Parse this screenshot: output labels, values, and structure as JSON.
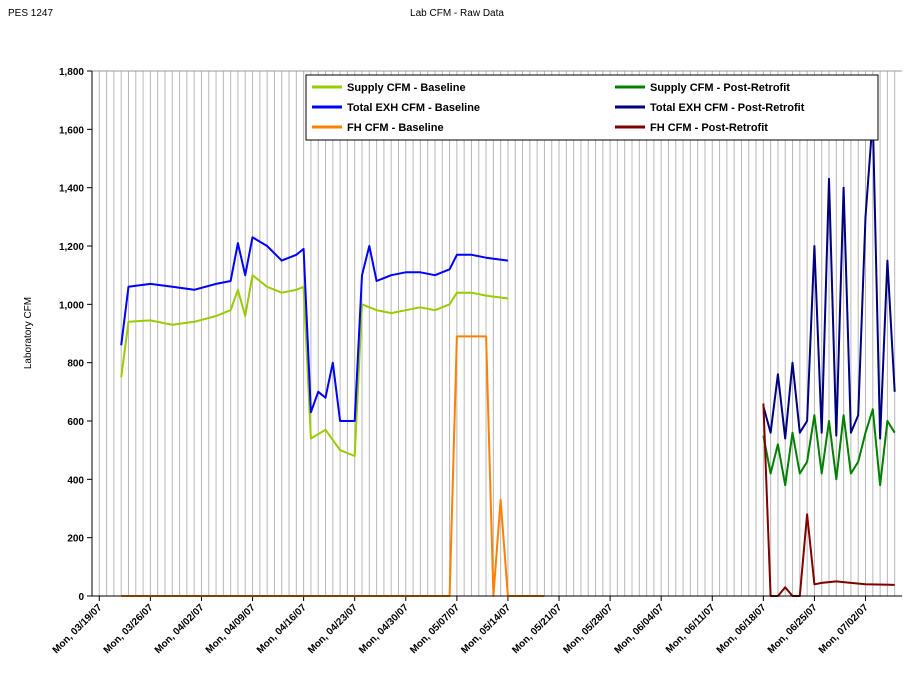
{
  "header": {
    "code": "PES 1247"
  },
  "chart_data": {
    "type": "line",
    "title": "Lab CFM - Raw Data",
    "ylabel": "Laboratory CFM",
    "xlim": [
      "03/18/07",
      "07/07/07"
    ],
    "xticks": [
      {
        "value": "03/19/07",
        "label": "Mon, 03/19/07"
      },
      {
        "value": "03/26/07",
        "label": "Mon, 03/26/07"
      },
      {
        "value": "04/02/07",
        "label": "Mon, 04/02/07"
      },
      {
        "value": "04/09/07",
        "label": "Mon, 04/09/07"
      },
      {
        "value": "04/16/07",
        "label": "Mon, 04/16/07"
      },
      {
        "value": "04/23/07",
        "label": "Mon, 04/23/07"
      },
      {
        "value": "04/30/07",
        "label": "Mon, 04/30/07"
      },
      {
        "value": "05/07/07",
        "label": "Mon, 05/07/07"
      },
      {
        "value": "05/14/07",
        "label": "Mon, 05/14/07"
      },
      {
        "value": "05/21/07",
        "label": "Mon, 05/21/07"
      },
      {
        "value": "05/28/07",
        "label": "Mon, 05/28/07"
      },
      {
        "value": "06/04/07",
        "label": "Mon, 06/04/07"
      },
      {
        "value": "06/11/07",
        "label": "Mon, 06/11/07"
      },
      {
        "value": "06/18/07",
        "label": "Mon, 06/18/07"
      },
      {
        "value": "06/25/07",
        "label": "Mon, 06/25/07"
      },
      {
        "value": "07/02/07",
        "label": "Mon, 07/02/07"
      }
    ],
    "ylim": [
      0,
      1800
    ],
    "yticks": [
      0,
      200,
      400,
      600,
      800,
      {
        "value": 1000,
        "label": "1,000"
      },
      {
        "value": 1200,
        "label": "1,200"
      },
      {
        "value": 1400,
        "label": "1,400"
      },
      {
        "value": 1600,
        "label": "1,600"
      },
      {
        "value": 1800,
        "label": "1,800"
      }
    ],
    "grid": true,
    "series": [
      {
        "name": "Supply CFM - Baseline",
        "color": "#99cc00",
        "x": [
          "03/22/07",
          "03/23/07",
          "03/26/07",
          "03/29/07",
          "04/01/07",
          "04/04/07",
          "04/06/07",
          "04/07/07",
          "04/08/07",
          "04/09/07",
          "04/11/07",
          "04/13/07",
          "04/15/07",
          "04/16/07",
          "04/17/07",
          "04/19/07",
          "04/21/07",
          "04/23/07",
          "04/24/07",
          "04/26/07",
          "04/28/07",
          "04/30/07",
          "05/02/07",
          "05/04/07",
          "05/06/07",
          "05/07/07",
          "05/09/07",
          "05/11/07",
          "05/14/07"
        ],
        "values": [
          750,
          940,
          945,
          930,
          940,
          960,
          980,
          1050,
          960,
          1100,
          1060,
          1040,
          1050,
          1060,
          540,
          570,
          500,
          480,
          1000,
          980,
          970,
          980,
          990,
          980,
          1000,
          1040,
          1040,
          1030,
          1020
        ]
      },
      {
        "name": "Supply CFM - Post-Retrofit",
        "color": "#008000",
        "x": [
          "06/18/07",
          "06/19/07",
          "06/20/07",
          "06/21/07",
          "06/22/07",
          "06/23/07",
          "06/24/07",
          "06/25/07",
          "06/26/07",
          "06/27/07",
          "06/28/07",
          "06/29/07",
          "06/30/07",
          "07/01/07",
          "07/02/07",
          "07/03/07",
          "07/04/07",
          "07/05/07",
          "07/06/07"
        ],
        "values": [
          550,
          420,
          520,
          380,
          560,
          420,
          460,
          620,
          420,
          600,
          400,
          620,
          420,
          460,
          560,
          640,
          380,
          600,
          560
        ]
      },
      {
        "name": "Total EXH CFM - Baseline",
        "color": "#0000ff",
        "x": [
          "03/22/07",
          "03/23/07",
          "03/26/07",
          "03/29/07",
          "04/01/07",
          "04/04/07",
          "04/06/07",
          "04/07/07",
          "04/08/07",
          "04/09/07",
          "04/11/07",
          "04/13/07",
          "04/15/07",
          "04/16/07",
          "04/17/07",
          "04/18/07",
          "04/19/07",
          "04/20/07",
          "04/21/07",
          "04/23/07",
          "04/24/07",
          "04/25/07",
          "04/26/07",
          "04/28/07",
          "04/30/07",
          "05/02/07",
          "05/04/07",
          "05/06/07",
          "05/07/07",
          "05/09/07",
          "05/11/07",
          "05/14/07"
        ],
        "values": [
          860,
          1060,
          1070,
          1060,
          1050,
          1070,
          1080,
          1210,
          1100,
          1230,
          1200,
          1150,
          1170,
          1190,
          630,
          700,
          680,
          800,
          600,
          600,
          1100,
          1200,
          1080,
          1100,
          1110,
          1110,
          1100,
          1120,
          1170,
          1170,
          1160,
          1150
        ]
      },
      {
        "name": "Total EXH CFM - Post-Retrofit",
        "color": "#000080",
        "x": [
          "06/18/07",
          "06/19/07",
          "06/20/07",
          "06/21/07",
          "06/22/07",
          "06/23/07",
          "06/24/07",
          "06/25/07",
          "06/26/07",
          "06/27/07",
          "06/28/07",
          "06/29/07",
          "06/30/07",
          "07/01/07",
          "07/02/07",
          "07/03/07",
          "07/04/07",
          "07/05/07",
          "07/06/07"
        ],
        "values": [
          650,
          560,
          760,
          540,
          800,
          560,
          600,
          1200,
          560,
          1430,
          550,
          1400,
          560,
          620,
          1300,
          1640,
          540,
          1150,
          700
        ]
      },
      {
        "name": "FH CFM - Baseline",
        "color": "#ff8000",
        "x": [
          "03/22/07",
          "05/06/07",
          "05/07/07",
          "05/11/07",
          "05/12/07",
          "05/13/07",
          "05/14/07",
          "05/19/07"
        ],
        "values": [
          0,
          0,
          890,
          890,
          0,
          330,
          0,
          0
        ]
      },
      {
        "name": "FH CFM - Post-Retrofit",
        "color": "#800000",
        "x": [
          "06/18/07",
          "06/19/07",
          "06/20/07",
          "06/21/07",
          "06/22/07",
          "06/23/07",
          "06/24/07",
          "06/25/07",
          "06/26/07",
          "06/28/07",
          "06/30/07",
          "07/02/07",
          "07/06/07"
        ],
        "values": [
          660,
          0,
          0,
          30,
          0,
          0,
          280,
          40,
          45,
          50,
          45,
          40,
          38
        ]
      }
    ]
  }
}
